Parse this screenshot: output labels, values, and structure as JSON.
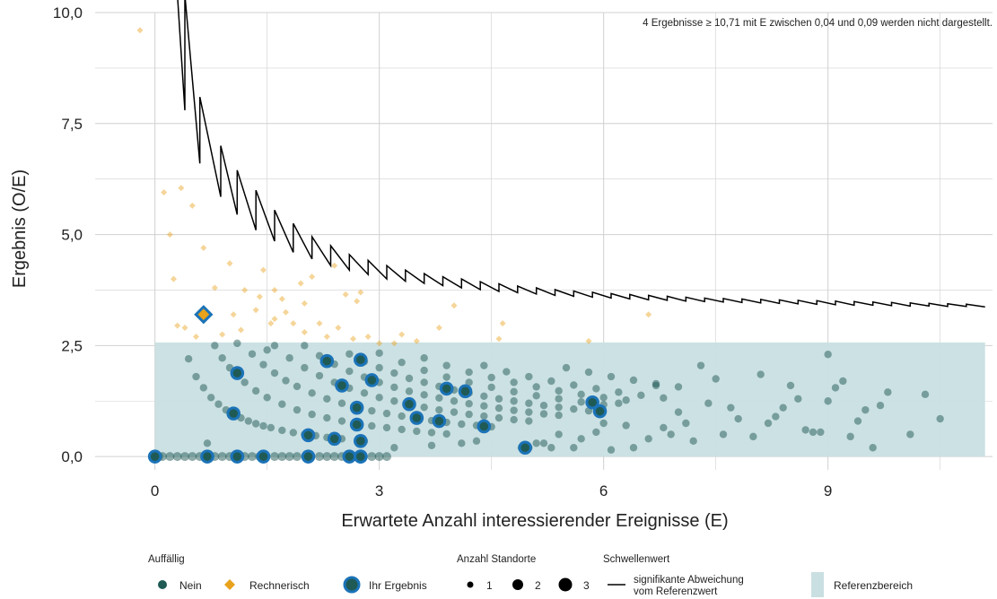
{
  "chart_data": {
    "type": "scatter",
    "title": "",
    "xlabel": "Erwartete Anzahl interessierender Ereignisse (E)",
    "ylabel": "Ergebnis (O/E)",
    "xlim": [
      -0.8,
      11.2
    ],
    "ylim": [
      -0.3,
      10.0
    ],
    "xticks": [
      0,
      3,
      6,
      9
    ],
    "xtick_labels": [
      "0",
      "3",
      "6",
      "9"
    ],
    "yticks": [
      0,
      2.5,
      5.0,
      7.5,
      10.0
    ],
    "ytick_labels": [
      "0,0",
      "2,5",
      "5,0",
      "7,5",
      "10,0"
    ],
    "grid": true,
    "note": "4 Ergebnisse ≥ 10,71 mit E zwischen 0,04 und 0,09 werden nicht dargestellt.",
    "reference_range": {
      "label": "Referenzbereich",
      "x": [
        0,
        11.1
      ],
      "y": [
        0,
        2.57
      ],
      "color": "#c9dfe1"
    },
    "colors": {
      "nein": "#1f5a55",
      "rechnerisch": "#e8a21c",
      "ihr_ergebnis_ring": "#1b73b8",
      "threshold": "#000000"
    },
    "threshold_series": {
      "name": "signifikante Abweichung vom Referenzwert",
      "x": [
        0.3,
        0.4,
        0.4,
        0.6,
        0.6,
        0.88,
        0.88,
        1.1,
        1.1,
        1.35,
        1.35,
        1.6,
        1.6,
        1.85,
        1.85,
        2.1,
        2.1,
        2.35,
        2.35,
        2.6,
        2.6,
        2.85,
        2.85,
        3.1,
        3.1,
        3.35,
        3.35,
        3.6,
        3.6,
        3.85,
        3.85,
        4.1,
        4.1,
        4.35,
        4.35,
        4.6,
        4.6,
        4.85,
        4.85,
        5.1,
        5.1,
        5.35,
        5.35,
        5.6,
        5.6,
        5.85,
        5.85,
        6.1,
        6.1,
        6.35,
        6.35,
        6.6,
        6.6,
        6.85,
        6.85,
        7.1,
        7.1,
        7.35,
        7.35,
        7.6,
        7.6,
        7.85,
        7.85,
        8.1,
        8.1,
        8.35,
        8.35,
        8.6,
        8.6,
        8.85,
        8.85,
        9.1,
        9.1,
        9.35,
        9.35,
        9.6,
        9.6,
        9.85,
        9.85,
        10.1,
        10.1,
        10.35,
        10.35,
        10.6,
        10.6,
        10.85,
        10.85,
        11.1
      ],
      "y": [
        10.5,
        7.8,
        10.5,
        6.6,
        8.1,
        5.85,
        7.0,
        5.45,
        6.45,
        5.1,
        6.0,
        4.85,
        5.55,
        4.6,
        5.25,
        4.45,
        4.95,
        4.3,
        4.75,
        4.2,
        4.55,
        4.1,
        4.42,
        4.0,
        4.3,
        3.95,
        4.2,
        3.9,
        4.12,
        3.85,
        4.05,
        3.8,
        4.0,
        3.76,
        3.94,
        3.72,
        3.89,
        3.69,
        3.84,
        3.66,
        3.8,
        3.63,
        3.76,
        3.61,
        3.73,
        3.59,
        3.7,
        3.57,
        3.67,
        3.55,
        3.65,
        3.53,
        3.63,
        3.52,
        3.61,
        3.5,
        3.59,
        3.49,
        3.57,
        3.48,
        3.56,
        3.47,
        3.55,
        3.46,
        3.54,
        3.45,
        3.53,
        3.44,
        3.52,
        3.43,
        3.51,
        3.42,
        3.5,
        3.41,
        3.49,
        3.41,
        3.48,
        3.4,
        3.47,
        3.39,
        3.46,
        3.39,
        3.45,
        3.38,
        3.44,
        3.38,
        3.43,
        3.37
      ]
    },
    "series": [
      {
        "name": "Nein",
        "x": [
          0.0,
          0.05,
          0.1,
          0.2,
          0.3,
          0.4,
          0.5,
          0.6,
          0.8,
          0.9,
          1.0,
          1.2,
          1.3,
          1.4,
          1.6,
          1.7,
          1.8,
          1.9,
          2.2,
          2.3,
          2.4,
          2.5,
          2.6,
          2.9,
          3.0,
          3.1,
          0.45,
          0.55,
          0.65,
          0.75,
          0.85,
          0.95,
          1.05,
          1.15,
          1.25,
          1.35,
          1.45,
          1.55,
          1.7,
          1.85,
          2.0,
          2.15,
          2.3,
          2.5,
          0.8,
          0.9,
          1.0,
          1.2,
          1.35,
          1.5,
          1.7,
          1.9,
          2.1,
          2.3,
          2.5,
          2.7,
          2.9,
          3.1,
          3.3,
          3.5,
          3.7,
          3.9,
          1.3,
          1.45,
          1.6,
          1.75,
          1.9,
          2.1,
          2.3,
          2.5,
          2.7,
          2.9,
          3.1,
          3.3,
          3.5,
          3.7,
          3.9,
          4.1,
          4.3,
          4.5,
          1.6,
          1.8,
          2.0,
          2.2,
          2.4,
          2.6,
          2.8,
          3.0,
          3.2,
          3.4,
          3.6,
          3.8,
          4.0,
          4.2,
          4.4,
          4.6,
          4.8,
          5.0,
          2.0,
          2.2,
          2.4,
          2.6,
          2.8,
          3.0,
          3.2,
          3.4,
          3.6,
          3.8,
          4.0,
          4.2,
          4.4,
          4.6,
          4.8,
          5.0,
          5.2,
          5.4,
          2.6,
          2.8,
          3.0,
          3.2,
          3.4,
          3.6,
          3.8,
          4.0,
          4.2,
          4.4,
          4.6,
          4.8,
          5.0,
          5.2,
          5.4,
          5.6,
          5.8,
          3.0,
          3.3,
          3.6,
          3.9,
          4.2,
          4.5,
          4.8,
          5.1,
          5.4,
          5.7,
          6.0,
          3.6,
          3.9,
          4.2,
          4.5,
          4.8,
          5.1,
          5.4,
          5.7,
          6.0,
          6.3,
          4.4,
          4.7,
          5.0,
          5.3,
          5.6,
          5.9,
          6.2,
          6.5,
          6.8,
          5.5,
          5.8,
          6.1,
          6.4,
          6.7,
          7.0,
          5.0,
          5.3,
          5.6,
          6.1,
          6.4,
          6.9,
          7.2,
          7.6,
          8.0,
          8.3,
          8.7,
          8.9,
          9.1,
          9.3,
          9.5,
          9.6,
          9.8,
          10.1,
          10.5,
          6.3,
          6.7,
          7.0,
          7.3,
          7.8,
          8.1,
          8.5,
          9.0,
          6.0,
          6.2,
          5.9,
          5.7,
          7.5,
          7.7,
          8.2,
          8.6,
          9.2,
          9.7,
          10.3,
          5.2,
          5.4,
          4.9,
          5.1,
          6.6,
          6.8,
          7.1,
          7.4,
          8.4,
          8.8,
          9.0,
          9.4,
          0.7,
          1.1,
          1.5,
          2.8,
          3.2,
          3.7,
          4.1,
          4.3
        ],
        "y": [
          0,
          0,
          0,
          0,
          0,
          0,
          0,
          0,
          0,
          0,
          0,
          0,
          0,
          0,
          0,
          0,
          0,
          0,
          0,
          0,
          0,
          0,
          0,
          0,
          0,
          0,
          2.2,
          1.8,
          1.55,
          1.33,
          1.18,
          1.05,
          0.95,
          0.87,
          0.8,
          0.74,
          0.69,
          0.65,
          0.59,
          0.54,
          0.5,
          0.47,
          0.43,
          0.4,
          2.5,
          2.22,
          2.0,
          1.67,
          1.48,
          1.33,
          1.18,
          1.05,
          0.95,
          0.87,
          0.8,
          0.74,
          0.69,
          0.65,
          0.61,
          0.57,
          0.54,
          0.51,
          2.31,
          2.07,
          1.88,
          1.71,
          1.58,
          1.43,
          1.3,
          1.2,
          1.11,
          1.03,
          0.97,
          0.91,
          0.86,
          0.81,
          0.77,
          0.73,
          0.7,
          0.67,
          2.5,
          2.22,
          2.0,
          1.82,
          1.67,
          1.54,
          1.43,
          1.33,
          1.25,
          1.18,
          1.11,
          1.05,
          1.0,
          0.95,
          0.91,
          0.87,
          0.83,
          0.8,
          2.5,
          2.27,
          2.08,
          1.92,
          1.79,
          1.67,
          1.56,
          1.47,
          1.39,
          1.32,
          1.25,
          1.19,
          1.14,
          1.09,
          1.04,
          1.0,
          0.96,
          0.93,
          2.31,
          2.14,
          2.0,
          1.88,
          1.76,
          1.67,
          1.58,
          1.5,
          1.43,
          1.36,
          1.3,
          1.25,
          1.2,
          1.15,
          1.11,
          1.07,
          1.03,
          2.33,
          2.12,
          1.94,
          1.79,
          1.67,
          1.56,
          1.46,
          1.37,
          1.3,
          1.23,
          1.17,
          2.22,
          2.05,
          1.9,
          1.78,
          1.67,
          1.57,
          1.48,
          1.4,
          1.33,
          1.27,
          2.05,
          1.91,
          1.8,
          1.7,
          1.61,
          1.53,
          1.45,
          1.38,
          1.32,
          2.0,
          1.9,
          1.8,
          1.72,
          1.64,
          1.57,
          0.2,
          0.2,
          0.2,
          0.15,
          0.2,
          0.5,
          0.35,
          0.5,
          0.45,
          0.9,
          0.6,
          0.55,
          1.55,
          0.45,
          1.05,
          0.2,
          1.45,
          0.5,
          0.85,
          0.7,
          1.6,
          1.0,
          2.05,
          0.85,
          1.85,
          1.6,
          2.3,
          0.75,
          1.2,
          0.55,
          0.4,
          1.75,
          1.1,
          0.75,
          1.3,
          1.7,
          1.15,
          1.4,
          0.3,
          0.5,
          0.2,
          0.3,
          0.4,
          0.65,
          0.75,
          1.2,
          1.1,
          0.55,
          1.25,
          0.8,
          0.3,
          2.55,
          2.4,
          0.35,
          0.2,
          0.25,
          0.3,
          0.35
        ],
        "color": "#1f5a55"
      },
      {
        "name": "Rechnerisch",
        "x": [
          -0.2,
          0.12,
          0.2,
          0.25,
          0.35,
          0.5,
          0.55,
          0.65,
          0.7,
          0.8,
          0.9,
          1.0,
          1.05,
          1.15,
          1.2,
          1.35,
          1.4,
          1.45,
          1.55,
          1.6,
          1.7,
          1.75,
          1.85,
          1.95,
          2.0,
          2.1,
          2.2,
          2.3,
          2.4,
          2.45,
          2.55,
          2.65,
          2.7,
          2.75,
          2.85,
          3.0,
          3.2,
          3.3,
          3.5,
          3.8,
          4.0,
          4.6,
          4.65,
          6.6,
          5.8,
          0.4,
          0.3,
          1.6,
          2.0
        ],
        "y": [
          9.6,
          5.95,
          5.0,
          4.0,
          6.05,
          5.65,
          2.7,
          4.7,
          3.2,
          3.8,
          2.75,
          4.35,
          3.2,
          2.85,
          3.75,
          3.3,
          3.6,
          4.2,
          3.0,
          3.75,
          3.55,
          3.25,
          3.0,
          3.9,
          2.8,
          4.05,
          3.0,
          2.7,
          4.3,
          2.9,
          3.65,
          2.65,
          3.5,
          3.7,
          2.7,
          2.55,
          2.55,
          2.75,
          2.6,
          2.9,
          3.4,
          2.65,
          3.0,
          3.2,
          2.6,
          2.9,
          2.95,
          3.1,
          3.45
        ],
        "color": "#e8a21c"
      },
      {
        "name": "Ihr Ergebnis",
        "x": [
          0.65,
          0.7,
          1.05,
          1.1,
          1.1,
          1.45,
          2.05,
          2.05,
          2.3,
          2.4,
          2.5,
          2.6,
          2.7,
          2.7,
          2.75,
          2.75,
          2.75,
          2.75,
          2.9,
          3.4,
          3.5,
          3.8,
          3.9,
          4.15,
          4.4,
          4.95,
          5.85,
          5.95,
          0.0
        ],
        "y": [
          3.2,
          0.0,
          0.97,
          1.88,
          0.0,
          0.0,
          0.0,
          0.48,
          2.15,
          0.4,
          1.6,
          0.0,
          1.1,
          0.72,
          0.35,
          2.18,
          0.0,
          0.0,
          1.72,
          1.18,
          0.87,
          0.8,
          1.53,
          1.47,
          0.68,
          0.2,
          1.22,
          1.02,
          0.0
        ],
        "color": "#1b73b8"
      }
    ]
  },
  "legend": {
    "auffaellig_title": "Auffällig",
    "nein_label": "Nein",
    "rechnerisch_label": "Rechnerisch",
    "ihr_ergebnis_label": "Ihr Ergebnis",
    "anzahl_title": "Anzahl Standorte",
    "size_labels": [
      "1",
      "2",
      "3"
    ],
    "schwellen_title": "Schwellenwert",
    "schwellen_label_line1": "signifikante Abweichung",
    "schwellen_label_line2": "vom Referenzwert",
    "referenz_label": "Referenzbereich"
  }
}
